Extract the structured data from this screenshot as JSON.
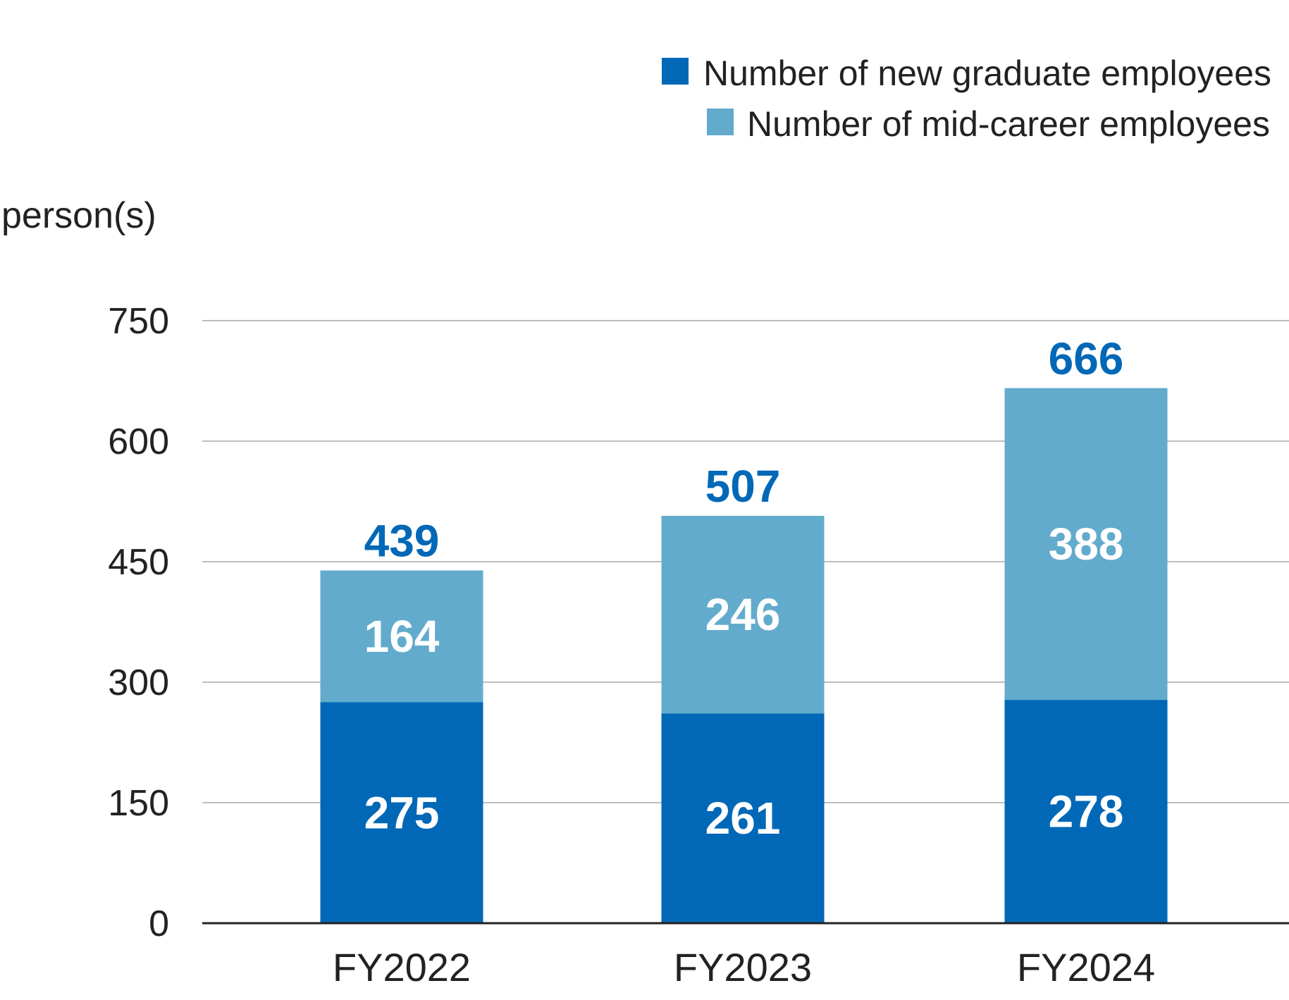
{
  "chart_data": {
    "type": "bar",
    "stacked": true,
    "unit_label": "person(s)",
    "categories": [
      "FY2022",
      "FY2023",
      "FY2024"
    ],
    "series": [
      {
        "name": "Number of new graduate employees",
        "values": [
          275,
          261,
          278
        ],
        "color": "#0068b7"
      },
      {
        "name": "Number of mid-career employees",
        "values": [
          164,
          246,
          388
        ],
        "color": "#62abcd"
      }
    ],
    "totals": [
      439,
      507,
      666
    ],
    "total_label_color": "#0068b7",
    "yticks": [
      0,
      150,
      300,
      450,
      600,
      750
    ],
    "ylim": [
      0,
      750
    ],
    "grid": true,
    "legend_position": "top-right"
  }
}
